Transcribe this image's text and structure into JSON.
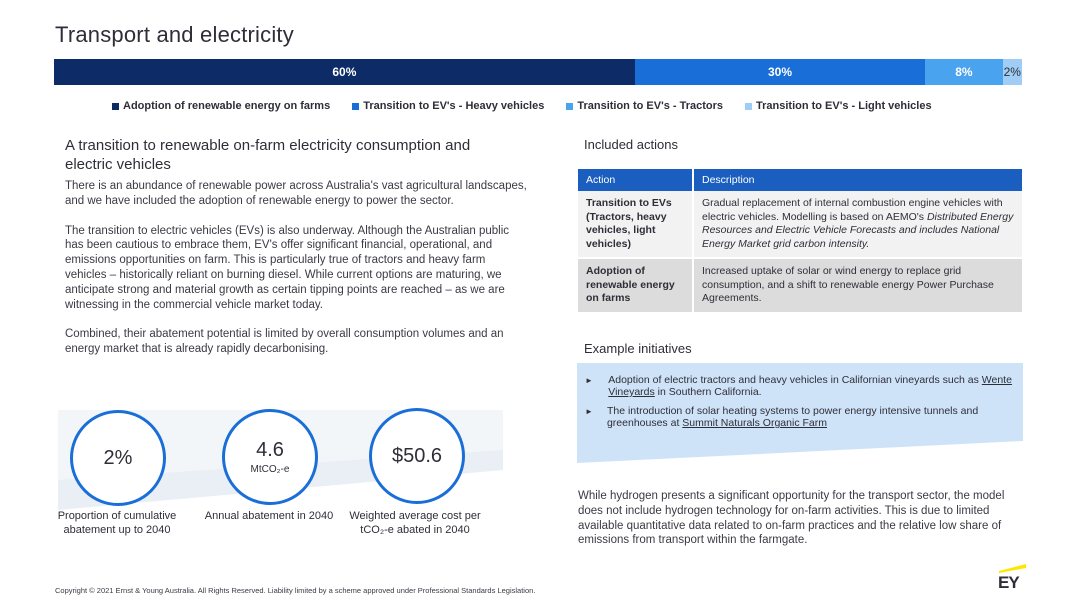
{
  "title": "Transport and electricity",
  "chart_data": {
    "type": "bar",
    "orientation": "horizontal-stacked",
    "series": [
      {
        "name": "Adoption of renewable energy on farms",
        "value": 60,
        "label": "60%",
        "color": "#0d2b66"
      },
      {
        "name": "Transition to EV's - Heavy vehicles",
        "value": 30,
        "label": "30%",
        "color": "#1a6ed8"
      },
      {
        "name": "Transition to EV's - Tractors",
        "value": 8,
        "label": "8%",
        "color": "#4aa3ee"
      },
      {
        "name": "Transition to EV's - Light vehicles",
        "value": 2,
        "label": "2%",
        "color": "#9fcdf5"
      }
    ],
    "legend_position": "bottom"
  },
  "left": {
    "heading": "A transition to renewable on-farm electricity consumption and electric vehicles",
    "paragraphs": [
      "There is an abundance of renewable power across Australia's vast agricultural landscapes, and we have included the adoption of renewable energy to power the sector.",
      "The transition to electric vehicles (EVs) is also underway. Although the Australian public has been cautious to embrace them, EV's offer significant financial, operational, and emissions opportunities on farm. This is particularly true of tractors and heavy farm vehicles – historically reliant on burning diesel. While current options are maturing, we anticipate strong and material growth as certain tipping points are reached – as we are witnessing in the commercial vehicle market today.",
      "Combined, their abatement potential is limited by overall consumption volumes and an energy market that is already rapidly decarbonising."
    ]
  },
  "stats": [
    {
      "value": "2%",
      "unit": "",
      "label": "Proportion of cumulative abatement up to 2040"
    },
    {
      "value": "4.6",
      "unit": "MtCO₂-e",
      "label": "Annual abatement in 2040"
    },
    {
      "value": "$50.6",
      "unit": "",
      "label": "Weighted average cost per tCO₂-e abated in 2040"
    }
  ],
  "actions": {
    "heading": "Included actions",
    "col_action": "Action",
    "col_description": "Description",
    "rows": [
      {
        "action": "Transition to EVs (Tractors, heavy vehicles, light vehicles)",
        "desc_plain": "Gradual replacement of internal combustion engine vehicles with electric vehicles. Modelling is based on AEMO's ",
        "desc_italic": "Distributed Energy Resources and Electric Vehicle Forecasts and includes National Energy Market grid carbon intensity."
      },
      {
        "action": "Adoption of renewable energy on farms",
        "desc_plain": "Increased uptake of solar or wind energy to replace grid consumption, and a shift to renewable energy Power Purchase Agreements.",
        "desc_italic": ""
      }
    ]
  },
  "initiatives": {
    "heading": "Example initiatives",
    "items": [
      {
        "text": "Adoption of electric tractors and heavy vehicles in Californian vineyards such as ",
        "link": "Wente Vineyards",
        "after": " in Southern California."
      },
      {
        "text": "The introduction of solar heating systems to power energy intensive tunnels and greenhouses at ",
        "link": "Summit Naturals Organic Farm",
        "after": ""
      }
    ]
  },
  "hydrogen": "While hydrogen presents a significant opportunity for the transport sector, the model does not include hydrogen technology for on-farm activities. This is due to limited available quantitative data related to on-farm practices and the relative low share of emissions from transport within the farmgate.",
  "footer": "Copyright © 2021 Ernst & Young Australia. All Rights Reserved. Liability limited by a scheme approved under Professional Standards Legislation.",
  "logo_text": "EY",
  "colors": {
    "accent_yellow": "#ffe600",
    "dark_navy": "#0d2b66",
    "header_blue": "#1a5fbf",
    "circle_blue": "#1a6ed8",
    "initiatives_bg": "#cfe3f8"
  }
}
